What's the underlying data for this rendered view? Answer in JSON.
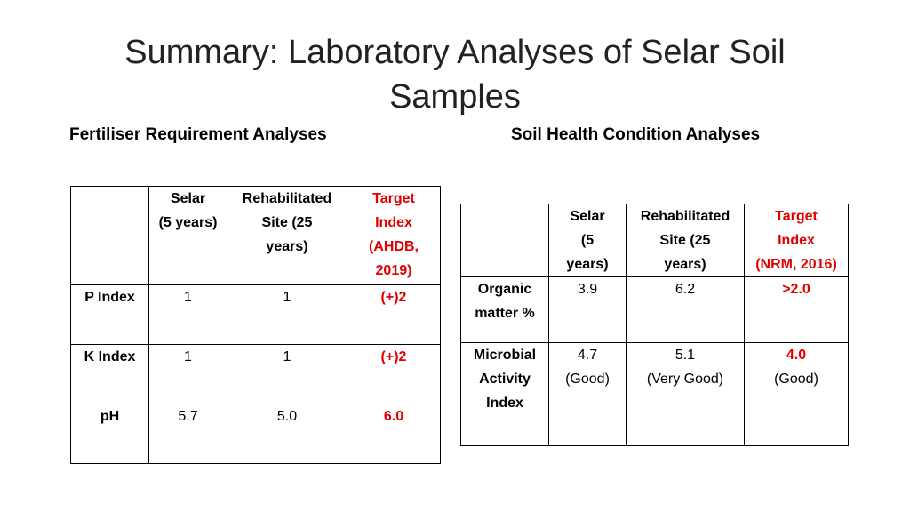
{
  "title_line1": "Summary: Laboratory Analyses of Selar Soil",
  "title_line2": "Samples",
  "left_heading": "Fertiliser Requirement Analyses",
  "right_heading": "Soil Health Condition Analyses",
  "fertiliser_table": {
    "headers": [
      "",
      [
        "Selar",
        "(5 years)"
      ],
      [
        "Rehabilitated",
        "Site (25",
        "years)"
      ],
      [
        "Target",
        "Index",
        "(AHDB,",
        "2019)"
      ]
    ],
    "rows": [
      {
        "label": "P Index",
        "selar": "1",
        "rehab": "1",
        "target": "(+)2"
      },
      {
        "label": "K Index",
        "selar": "1",
        "rehab": "1",
        "target": "(+)2"
      },
      {
        "label": "pH",
        "selar": "5.7",
        "rehab": "5.0",
        "target": "6.0"
      }
    ]
  },
  "soil_table": {
    "headers": [
      "",
      [
        "Selar",
        "(5",
        "years)"
      ],
      [
        "Rehabilitated",
        "Site (25",
        "years)"
      ],
      [
        "Target",
        "Index",
        "(NRM, 2016)"
      ]
    ],
    "rows": [
      {
        "label": [
          "Organic",
          "matter %"
        ],
        "selar": [
          "3.9"
        ],
        "rehab": [
          "6.2"
        ],
        "target": [
          ">2.0"
        ]
      },
      {
        "label": [
          "Microbial",
          "Activity",
          "Index"
        ],
        "selar": [
          "4.7",
          "(Good)"
        ],
        "rehab": [
          "5.1",
          "(Very Good)"
        ],
        "target": [
          "4.0",
          "(Good)"
        ]
      }
    ]
  },
  "colors": {
    "target": "#e00000"
  }
}
